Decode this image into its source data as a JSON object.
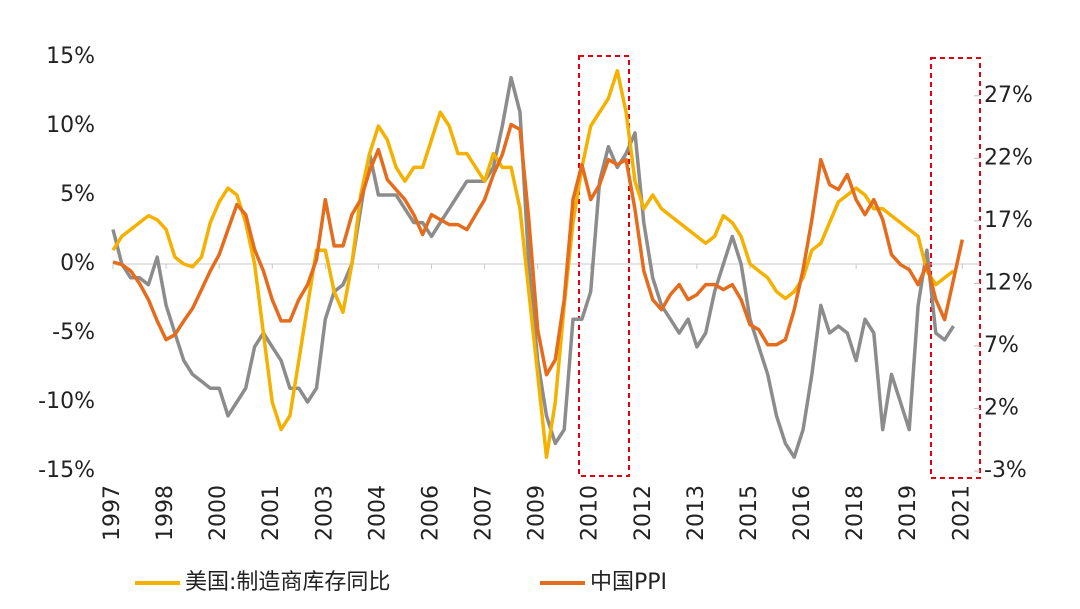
{
  "chart_data": {
    "type": "line",
    "x": [
      1997,
      1997.25,
      1997.5,
      1997.75,
      1998,
      1998.25,
      1998.5,
      1998.75,
      1999,
      1999.25,
      1999.5,
      1999.75,
      2000,
      2000.25,
      2000.5,
      2000.75,
      2001,
      2001.25,
      2001.5,
      2001.75,
      2002,
      2002.25,
      2002.5,
      2002.75,
      2003,
      2003.25,
      2003.5,
      2003.75,
      2004,
      2004.25,
      2004.5,
      2004.75,
      2005,
      2005.25,
      2005.5,
      2005.75,
      2006,
      2006.25,
      2006.5,
      2006.75,
      2007,
      2007.25,
      2007.5,
      2007.75,
      2008,
      2008.25,
      2008.5,
      2008.75,
      2009,
      2009.25,
      2009.5,
      2009.75,
      2010,
      2010.25,
      2010.5,
      2010.75,
      2011,
      2011.25,
      2011.5,
      2011.75,
      2012,
      2012.25,
      2012.5,
      2012.75,
      2013,
      2013.25,
      2013.5,
      2013.75,
      2014,
      2014.25,
      2014.5,
      2014.75,
      2015,
      2015.25,
      2015.5,
      2015.75,
      2016,
      2016.25,
      2016.5,
      2016.75,
      2017,
      2017.25,
      2017.5,
      2017.75,
      2018,
      2018.25,
      2018.5,
      2018.75,
      2019,
      2019.25,
      2019.5,
      2019.75,
      2020,
      2020.25,
      2020.5,
      2020.75,
      2021
    ],
    "series": [
      {
        "name": "美国:制造商库存同比",
        "color": "#f5b100",
        "values": [
          1,
          2,
          2.5,
          3,
          3.5,
          3.2,
          2.5,
          0.5,
          0,
          -0.2,
          0.5,
          3,
          4.5,
          5.5,
          5,
          3,
          0,
          -5,
          -10,
          -12,
          -11,
          -7,
          -3,
          1,
          1,
          -2,
          -3.5,
          0,
          5,
          8,
          10,
          9,
          7,
          6,
          7,
          7,
          9,
          11,
          10,
          8,
          8,
          7,
          6,
          8,
          7,
          7,
          4,
          -2,
          -8,
          -14,
          -10,
          -3,
          3,
          7,
          10,
          11,
          12,
          14,
          11,
          6,
          4,
          5,
          4,
          3.5,
          3,
          2.5,
          2,
          1.5,
          2,
          3.5,
          3,
          2,
          0,
          -0.5,
          -1,
          -2,
          -2.5,
          -2,
          -1,
          1,
          1.5,
          3,
          4.5,
          5,
          5.5,
          5,
          4,
          4,
          3.5,
          3,
          2.5,
          2,
          -0.5,
          -1.5,
          -1,
          -0.5,
          null
        ]
      },
      {
        "name": "中国PPI",
        "color": "#e46c1c",
        "axis": "y2",
        "values": [
          13.7,
          13.5,
          13,
          12,
          10.7,
          9,
          7.5,
          7.9,
          9,
          10,
          11.5,
          13,
          14.3,
          16.3,
          18.3,
          17.5,
          14.7,
          13,
          10.7,
          9,
          9,
          10.7,
          11.9,
          13.9,
          18.7,
          15,
          15,
          17.5,
          18.7,
          21,
          22.7,
          20.3,
          19.5,
          18.7,
          17.5,
          15.9,
          17.5,
          17.1,
          16.7,
          16.7,
          16.3,
          17.5,
          18.7,
          20.7,
          22.3,
          24.7,
          24.3,
          17.1,
          8.3,
          4.7,
          5.9,
          10.7,
          18.7,
          21.5,
          18.7,
          19.9,
          21.9,
          21.5,
          21.9,
          17.9,
          13,
          10.7,
          9.9,
          11.1,
          11.9,
          10.7,
          11.1,
          11.9,
          11.9,
          11.5,
          11.9,
          10.7,
          8.7,
          8.3,
          7.1,
          7.1,
          7.5,
          9.9,
          13.1,
          17.1,
          21.9,
          19.9,
          19.5,
          20.7,
          18.7,
          17.5,
          18.7,
          17.1,
          14.3,
          13.5,
          13.1,
          11.9,
          13.5,
          10.7,
          9.1,
          12.3,
          15.5
        ]
      },
      {
        "color": "#8c8c8c",
        "values": [
          2.5,
          0,
          -1,
          -1,
          -1.5,
          0.5,
          -3,
          -5,
          -7,
          -8,
          -8.5,
          -9,
          -9,
          -11,
          -10,
          -9,
          -6,
          -5,
          -6,
          -7,
          -9,
          -9,
          -10,
          -9,
          -4,
          -2,
          -1.5,
          0,
          4,
          8,
          5,
          5,
          5,
          4,
          3,
          3,
          2,
          3,
          4,
          5,
          6,
          6,
          6,
          7,
          10,
          13.5,
          11,
          0,
          -7,
          -11,
          -13,
          -12,
          -4,
          -4,
          -2,
          6,
          8.5,
          7,
          8,
          9.5,
          3,
          -1,
          -3,
          -4,
          -5,
          -4,
          -6,
          -5,
          -2,
          0,
          2,
          0,
          -4,
          -6,
          -8,
          -11,
          -13,
          -14,
          -12,
          -8,
          -3,
          -5,
          -4.5,
          -5,
          -7,
          -4,
          -5,
          -12,
          -8,
          -10,
          -12,
          -3,
          1,
          -5,
          -5.5,
          -4.5,
          null
        ]
      }
    ],
    "xlim": [
      1997,
      2021.5
    ],
    "xticks": [
      1997,
      {
        "value": 1998.5,
        "label": "1998"
      },
      2000,
      {
        "value": 2001.5,
        "label": "2001"
      },
      2003,
      {
        "value": 2004.5,
        "label": "2004"
      },
      2006,
      {
        "value": 2007.5,
        "label": "2007"
      },
      2009,
      {
        "value": 2010.5,
        "label": "2010"
      },
      2012,
      {
        "value": 2013.5,
        "label": "2013"
      },
      2015,
      {
        "value": 2016.5,
        "label": "2016"
      },
      2018,
      {
        "value": 2019.5,
        "label": "2019"
      },
      2021
    ],
    "ylim": [
      -15,
      15
    ],
    "yticks": [
      {
        "value": -15,
        "label": "-15%"
      },
      {
        "value": -10,
        "label": "-10%"
      },
      {
        "value": -5,
        "label": "-5%"
      },
      {
        "value": 0,
        "label": "0%"
      },
      {
        "value": 5,
        "label": "5%"
      },
      {
        "value": 10,
        "label": "10%"
      },
      {
        "value": 15,
        "label": "15%"
      }
    ],
    "y2lim": [
      -3,
      30.1
    ],
    "y2ticks": [
      {
        "value": -3,
        "label": "-3%"
      },
      {
        "value": 2,
        "label": "2%"
      },
      {
        "value": 7,
        "label": "7%"
      },
      {
        "value": 12,
        "label": "12%"
      },
      {
        "value": 17,
        "label": "17%"
      },
      {
        "value": 22,
        "label": "22%"
      },
      {
        "value": 27,
        "label": "27%"
      }
    ]
  }
}
